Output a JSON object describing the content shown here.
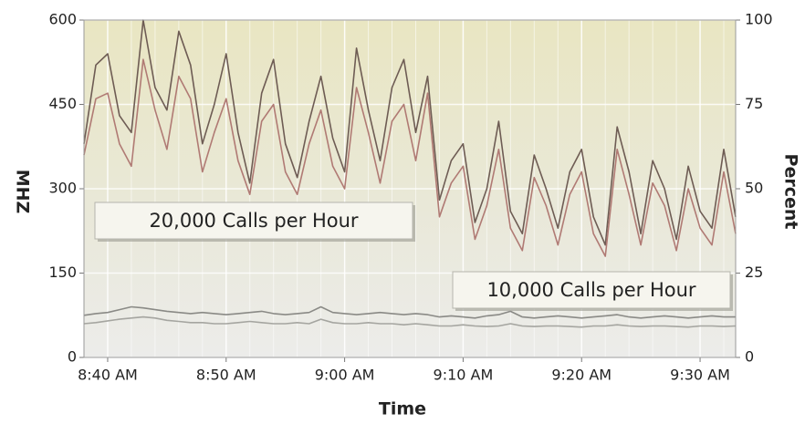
{
  "chart_data": {
    "type": "line",
    "x_label": "Time",
    "y_label": "MHZ",
    "y2_label": "Percent",
    "x": [
      "8:38 AM",
      "8:39 AM",
      "8:40 AM",
      "8:41 AM",
      "8:42 AM",
      "8:43 AM",
      "8:44 AM",
      "8:45 AM",
      "8:46 AM",
      "8:47 AM",
      "8:48 AM",
      "8:49 AM",
      "8:50 AM",
      "8:51 AM",
      "8:52 AM",
      "8:53 AM",
      "8:54 AM",
      "8:55 AM",
      "8:56 AM",
      "8:57 AM",
      "8:58 AM",
      "8:59 AM",
      "9:00 AM",
      "9:01 AM",
      "9:02 AM",
      "9:03 AM",
      "9:04 AM",
      "9:05 AM",
      "9:06 AM",
      "9:07 AM",
      "9:08 AM",
      "9:09 AM",
      "9:10 AM",
      "9:11 AM",
      "9:12 AM",
      "9:13 AM",
      "9:14 AM",
      "9:15 AM",
      "9:16 AM",
      "9:17 AM",
      "9:18 AM",
      "9:19 AM",
      "9:20 AM",
      "9:21 AM",
      "9:22 AM",
      "9:23 AM",
      "9:24 AM",
      "9:25 AM",
      "9:26 AM",
      "9:27 AM",
      "9:28 AM",
      "9:29 AM",
      "9:30 AM",
      "9:31 AM",
      "9:32 AM",
      "9:33 AM"
    ],
    "xlim": [
      "8:38 AM",
      "9:33 AM"
    ],
    "xticks": [
      "8:40 AM",
      "8:50 AM",
      "9:00 AM",
      "9:10 AM",
      "9:20 AM",
      "9:30 AM"
    ],
    "ylim": [
      0,
      600
    ],
    "yticks": [
      0,
      150,
      300,
      450,
      600
    ],
    "y2lim": [
      0,
      100
    ],
    "y2ticks": [
      0,
      25,
      50,
      75,
      100
    ],
    "grid": true,
    "series": [
      {
        "color": "#6e5c54",
        "values": [
          380,
          520,
          540,
          430,
          400,
          600,
          480,
          440,
          580,
          520,
          380,
          450,
          540,
          400,
          310,
          470,
          530,
          380,
          320,
          420,
          500,
          390,
          330,
          550,
          440,
          350,
          480,
          530,
          400,
          500,
          280,
          350,
          380,
          240,
          300,
          420,
          260,
          220,
          360,
          300,
          230,
          330,
          370,
          250,
          200,
          410,
          330,
          220,
          350,
          300,
          210,
          340,
          260,
          230,
          370,
          250
        ]
      },
      {
        "color": "#b07a74",
        "values": [
          360,
          460,
          470,
          380,
          340,
          530,
          440,
          370,
          500,
          460,
          330,
          400,
          460,
          350,
          290,
          420,
          450,
          330,
          290,
          380,
          440,
          340,
          300,
          480,
          400,
          310,
          420,
          450,
          350,
          470,
          250,
          310,
          340,
          210,
          270,
          370,
          230,
          190,
          320,
          270,
          200,
          290,
          330,
          220,
          180,
          370,
          290,
          200,
          310,
          270,
          190,
          300,
          230,
          200,
          330,
          220
        ]
      },
      {
        "color": "#8a8a86",
        "values": [
          75,
          78,
          80,
          85,
          90,
          88,
          85,
          82,
          80,
          78,
          80,
          78,
          76,
          78,
          80,
          82,
          78,
          76,
          78,
          80,
          90,
          80,
          78,
          76,
          78,
          80,
          78,
          76,
          78,
          76,
          72,
          74,
          72,
          70,
          74,
          76,
          82,
          72,
          70,
          72,
          74,
          72,
          70,
          72,
          74,
          76,
          72,
          70,
          72,
          74,
          72,
          70,
          72,
          74,
          72,
          72
        ]
      },
      {
        "color": "#a5a5a0",
        "values": [
          60,
          62,
          65,
          68,
          70,
          72,
          70,
          66,
          64,
          62,
          62,
          60,
          60,
          62,
          64,
          62,
          60,
          60,
          62,
          60,
          68,
          62,
          60,
          60,
          62,
          60,
          60,
          58,
          60,
          58,
          56,
          56,
          58,
          56,
          55,
          56,
          60,
          56,
          55,
          56,
          56,
          55,
          54,
          56,
          56,
          58,
          56,
          55,
          56,
          56,
          55,
          54,
          56,
          56,
          55,
          56
        ]
      }
    ],
    "annotations": [
      "20,000 Calls per Hour",
      "10,000 Calls per Hour"
    ]
  }
}
